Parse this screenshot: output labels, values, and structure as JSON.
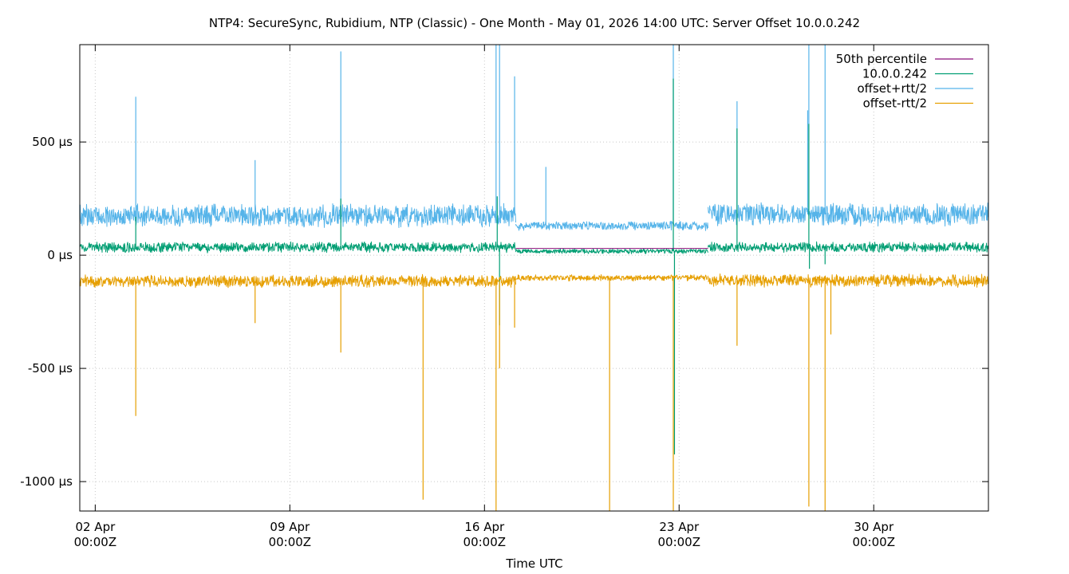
{
  "chart_data": {
    "type": "line",
    "title": "NTP4: SecureSync, Rubidium, NTP (Classic) - One Month - May 01, 2026 14:00 UTC: Server Offset 10.0.0.242",
    "xlabel": "Time UTC",
    "ylabel": "",
    "x_range": [
      "2026-04-01T10:40Z",
      "2026-05-04T03:00Z"
    ],
    "ylim": [
      -1130,
      930
    ],
    "y_unit": "µs",
    "grid": true,
    "legend_position": "top-right",
    "x_ticks": [
      {
        "date": "2026-04-02T00:00Z",
        "label_line1": "02 Apr",
        "label_line2": "00:00Z"
      },
      {
        "date": "2026-04-09T00:00Z",
        "label_line1": "09 Apr",
        "label_line2": "00:00Z"
      },
      {
        "date": "2026-04-16T00:00Z",
        "label_line1": "16 Apr",
        "label_line2": "00:00Z"
      },
      {
        "date": "2026-04-23T00:00Z",
        "label_line1": "23 Apr",
        "label_line2": "00:00Z"
      },
      {
        "date": "2026-04-30T00:00Z",
        "label_line1": "30 Apr",
        "label_line2": "00:00Z"
      }
    ],
    "y_ticks": [
      {
        "value": 500,
        "label": "500 µs"
      },
      {
        "value": 0,
        "label": "0 µs"
      },
      {
        "value": -500,
        "label": "-500 µs"
      },
      {
        "value": -1000,
        "label": "-1000 µs"
      }
    ],
    "series": [
      {
        "name": "50th percentile",
        "color": "#8b0f7a",
        "style": "step",
        "segments": [
          {
            "start": "2026-04-17T03:00Z",
            "end": "2026-04-24T01:00Z",
            "value": 30
          }
        ]
      },
      {
        "name": "10.0.0.242",
        "color": "#009e73",
        "style": "noise-band",
        "segments": [
          {
            "start": "2026-04-01T10:40Z",
            "end": "2026-04-17T03:00Z",
            "center": 35,
            "half_width": 25
          },
          {
            "start": "2026-04-17T03:00Z",
            "end": "2026-04-24T01:00Z",
            "center": 18,
            "half_width": 12
          },
          {
            "start": "2026-04-24T01:00Z",
            "end": "2026-05-04T03:00Z",
            "center": 35,
            "half_width": 25
          }
        ],
        "spikes": [
          {
            "date": "2026-04-03T11:00Z",
            "value": 170
          },
          {
            "date": "2026-04-10T20:00Z",
            "value": 250
          },
          {
            "date": "2026-04-16T11:00Z",
            "value": 260
          },
          {
            "date": "2026-04-16T13:00Z",
            "value": -310
          },
          {
            "date": "2026-04-22T19:00Z",
            "value": 780
          },
          {
            "date": "2026-04-22T20:00Z",
            "value": -880
          },
          {
            "date": "2026-04-25T02:00Z",
            "value": 560
          },
          {
            "date": "2026-04-27T16:00Z",
            "value": 580
          },
          {
            "date": "2026-04-27T16:30Z",
            "value": -60
          },
          {
            "date": "2026-04-28T06:00Z",
            "value": -40
          }
        ]
      },
      {
        "name": "offset+rtt/2",
        "color": "#56b4e9",
        "style": "noise-band",
        "segments": [
          {
            "start": "2026-04-01T10:40Z",
            "end": "2026-04-17T03:00Z",
            "center": 175,
            "half_width": 55
          },
          {
            "start": "2026-04-17T03:00Z",
            "end": "2026-04-24T01:00Z",
            "center": 130,
            "half_width": 22
          },
          {
            "start": "2026-04-24T01:00Z",
            "end": "2026-05-04T03:00Z",
            "center": 180,
            "half_width": 55
          }
        ],
        "spikes": [
          {
            "date": "2026-04-03T11:00Z",
            "value": 700
          },
          {
            "date": "2026-04-07T18:00Z",
            "value": 420
          },
          {
            "date": "2026-04-10T20:00Z",
            "value": 900
          },
          {
            "date": "2026-04-16T10:00Z",
            "value": 930
          },
          {
            "date": "2026-04-16T13:00Z",
            "value": 930
          },
          {
            "date": "2026-04-17T02:00Z",
            "value": 790
          },
          {
            "date": "2026-04-18T05:00Z",
            "value": 390
          },
          {
            "date": "2026-04-22T19:00Z",
            "value": 930
          },
          {
            "date": "2026-04-25T02:00Z",
            "value": 680
          },
          {
            "date": "2026-04-27T15:00Z",
            "value": 640
          },
          {
            "date": "2026-04-27T16:00Z",
            "value": 930
          },
          {
            "date": "2026-04-28T06:00Z",
            "value": 930
          }
        ]
      },
      {
        "name": "offset-rtt/2",
        "color": "#e69f00",
        "style": "noise-band",
        "segments": [
          {
            "start": "2026-04-01T10:40Z",
            "end": "2026-04-17T03:00Z",
            "center": -115,
            "half_width": 30
          },
          {
            "start": "2026-04-17T03:00Z",
            "end": "2026-04-24T01:00Z",
            "center": -100,
            "half_width": 15
          },
          {
            "start": "2026-04-24T01:00Z",
            "end": "2026-05-04T03:00Z",
            "center": -112,
            "half_width": 30
          }
        ],
        "spikes": [
          {
            "date": "2026-04-03T11:00Z",
            "value": -710
          },
          {
            "date": "2026-04-07T18:00Z",
            "value": -300
          },
          {
            "date": "2026-04-10T20:00Z",
            "value": -430
          },
          {
            "date": "2026-04-13T19:00Z",
            "value": -1080
          },
          {
            "date": "2026-04-16T10:00Z",
            "value": -1130
          },
          {
            "date": "2026-04-16T13:00Z",
            "value": -500
          },
          {
            "date": "2026-04-17T02:00Z",
            "value": -320
          },
          {
            "date": "2026-04-20T12:00Z",
            "value": -1130
          },
          {
            "date": "2026-04-22T19:00Z",
            "value": -1130
          },
          {
            "date": "2026-04-25T02:00Z",
            "value": -400
          },
          {
            "date": "2026-04-27T16:00Z",
            "value": -1110
          },
          {
            "date": "2026-04-28T06:00Z",
            "value": -1130
          },
          {
            "date": "2026-04-28T11:00Z",
            "value": -350
          }
        ]
      }
    ]
  }
}
